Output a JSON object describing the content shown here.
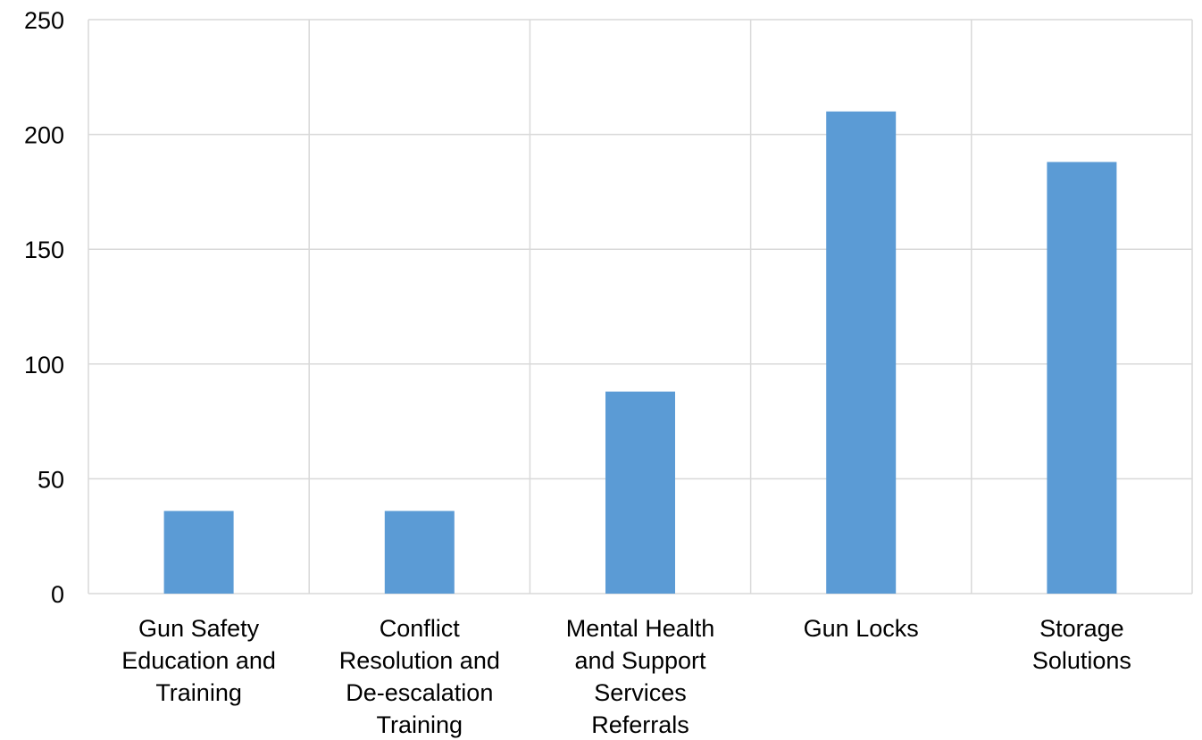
{
  "chart_data": {
    "type": "bar",
    "categories": [
      [
        "Gun Safety",
        "Education and",
        "Training"
      ],
      [
        "Conflict",
        "Resolution and",
        "De-escalation",
        "Training"
      ],
      [
        "Mental Health",
        "and Support",
        "Services",
        "Referrals"
      ],
      [
        "Gun Locks"
      ],
      [
        "Storage",
        "Solutions"
      ]
    ],
    "values": [
      36,
      36,
      88,
      210,
      188
    ],
    "ylim": [
      0,
      250
    ],
    "yticks": [
      0,
      50,
      100,
      150,
      200,
      250
    ],
    "grid": true,
    "bar_color": "#5B9BD5",
    "grid_color": "#D9D9D9"
  }
}
